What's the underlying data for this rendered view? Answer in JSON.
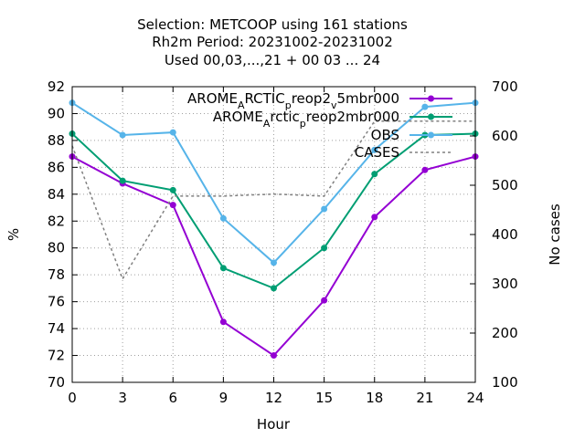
{
  "chart_data": {
    "type": "line",
    "title_lines": [
      "Selection: METCOOP using   161 stations",
      "Rh2m   Period: 20231002-20231002",
      "Used  00,03,...,21  + 00 03 ... 24"
    ],
    "xlabel": "Hour",
    "ylabel": "%",
    "y2label": "No cases",
    "x": [
      0,
      3,
      6,
      9,
      12,
      15,
      18,
      21,
      24
    ],
    "xlim": [
      0,
      24
    ],
    "ylim": [
      70,
      92
    ],
    "y2lim": [
      100,
      700
    ],
    "xticks": [
      "0",
      "3",
      "6",
      "9",
      "12",
      "15",
      "18",
      "21",
      "24"
    ],
    "yticks": [
      "70",
      "72",
      "74",
      "76",
      "78",
      "80",
      "82",
      "84",
      "86",
      "88",
      "90",
      "92"
    ],
    "y2ticks": [
      "100",
      "200",
      "300",
      "400",
      "500",
      "600",
      "700"
    ],
    "grid": true,
    "legend_position": "top-right",
    "series": [
      {
        "name": "AROME_ARCTIC_preop2_v5mbr000",
        "legend_parts": [
          "AROME",
          "A",
          "RCTIC",
          "p",
          "reop2",
          "v",
          "5mbr000"
        ],
        "color": "#9400d3",
        "axis": "y",
        "dash": "",
        "marker": true,
        "values": [
          86.8,
          84.8,
          83.2,
          74.5,
          72.0,
          76.1,
          82.3,
          85.8,
          86.8
        ]
      },
      {
        "name": "AROME_Arctic_preop2mbr000",
        "legend_parts": [
          "AROME",
          "A",
          "rctic",
          "p",
          "reop2mbr000"
        ],
        "color": "#009e73",
        "axis": "y",
        "dash": "",
        "marker": true,
        "values": [
          88.5,
          85.0,
          84.3,
          78.5,
          77.0,
          80.0,
          85.5,
          88.4,
          88.5
        ]
      },
      {
        "name": "OBS",
        "legend_parts": [
          "OBS"
        ],
        "color": "#56b4e9",
        "axis": "y",
        "dash": "",
        "marker": true,
        "values": [
          90.8,
          88.4,
          88.6,
          82.2,
          78.9,
          82.9,
          87.3,
          90.5,
          90.8
        ]
      },
      {
        "name": "CASES",
        "legend_parts": [
          "CASES"
        ],
        "color": "#808080",
        "axis": "y2",
        "dash": "3 3",
        "marker": false,
        "values": [
          580,
          310,
          478,
          478,
          482,
          478,
          630,
          630,
          630
        ]
      }
    ]
  }
}
